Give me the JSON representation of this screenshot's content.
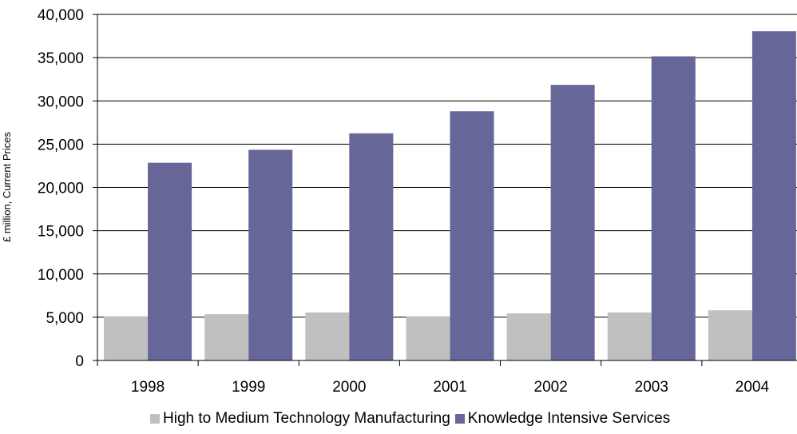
{
  "chart_data": {
    "type": "bar",
    "title": "",
    "xlabel": "",
    "ylabel": "£ million, Current Prices",
    "categories": [
      "1998",
      "1999",
      "2000",
      "2001",
      "2002",
      "2003",
      "2004"
    ],
    "ylim": [
      0,
      40000
    ],
    "yticks": [
      0,
      5000,
      10000,
      15000,
      20000,
      25000,
      30000,
      35000,
      40000
    ],
    "ytick_labels": [
      "0",
      "5,000",
      "10,000",
      "15,000",
      "20,000",
      "25,000",
      "30,000",
      "35,000",
      "40,000"
    ],
    "grid": true,
    "legend_position": "bottom",
    "series": [
      {
        "name": "High to Medium Technology Manufacturing",
        "color": "#c0c0c0",
        "values": [
          5100,
          5350,
          5550,
          5100,
          5450,
          5550,
          5800
        ]
      },
      {
        "name": "Knowledge Intensive Services",
        "color": "#666699",
        "values": [
          22850,
          24350,
          26250,
          28800,
          31850,
          35150,
          38050
        ]
      }
    ]
  }
}
